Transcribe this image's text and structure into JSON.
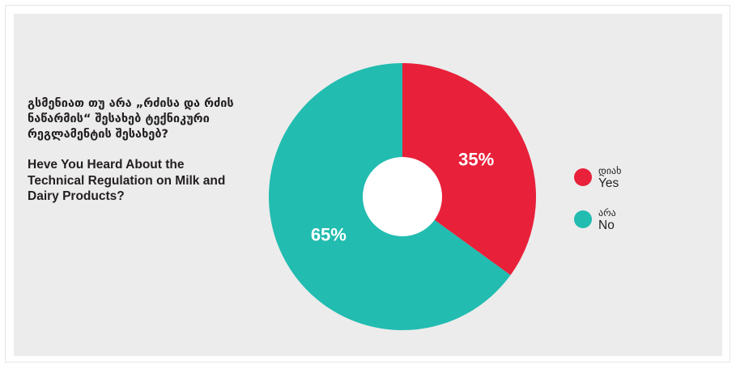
{
  "question": {
    "georgian": "გსმენიათ თუ არა „რძისა და რძის ნაწარმის“ შესახებ ტექნიკური რეგლამენტის შესახებ?",
    "english": "Heve You Heard About the Technical Regulation on Milk and Dairy Products?"
  },
  "legend": [
    {
      "ka": "დიახ",
      "en": "Yes",
      "color": "#e8203a"
    },
    {
      "ka": "არა",
      "en": "No",
      "color": "#22bcb0"
    }
  ],
  "chart_data": {
    "type": "pie",
    "donut": true,
    "labels": [
      "დიახ / Yes",
      "არა / No"
    ],
    "values": [
      35,
      65
    ],
    "value_labels": [
      "35%",
      "65%"
    ],
    "colors": [
      "#e8203a",
      "#22bcb0"
    ],
    "legend_position": "right"
  }
}
